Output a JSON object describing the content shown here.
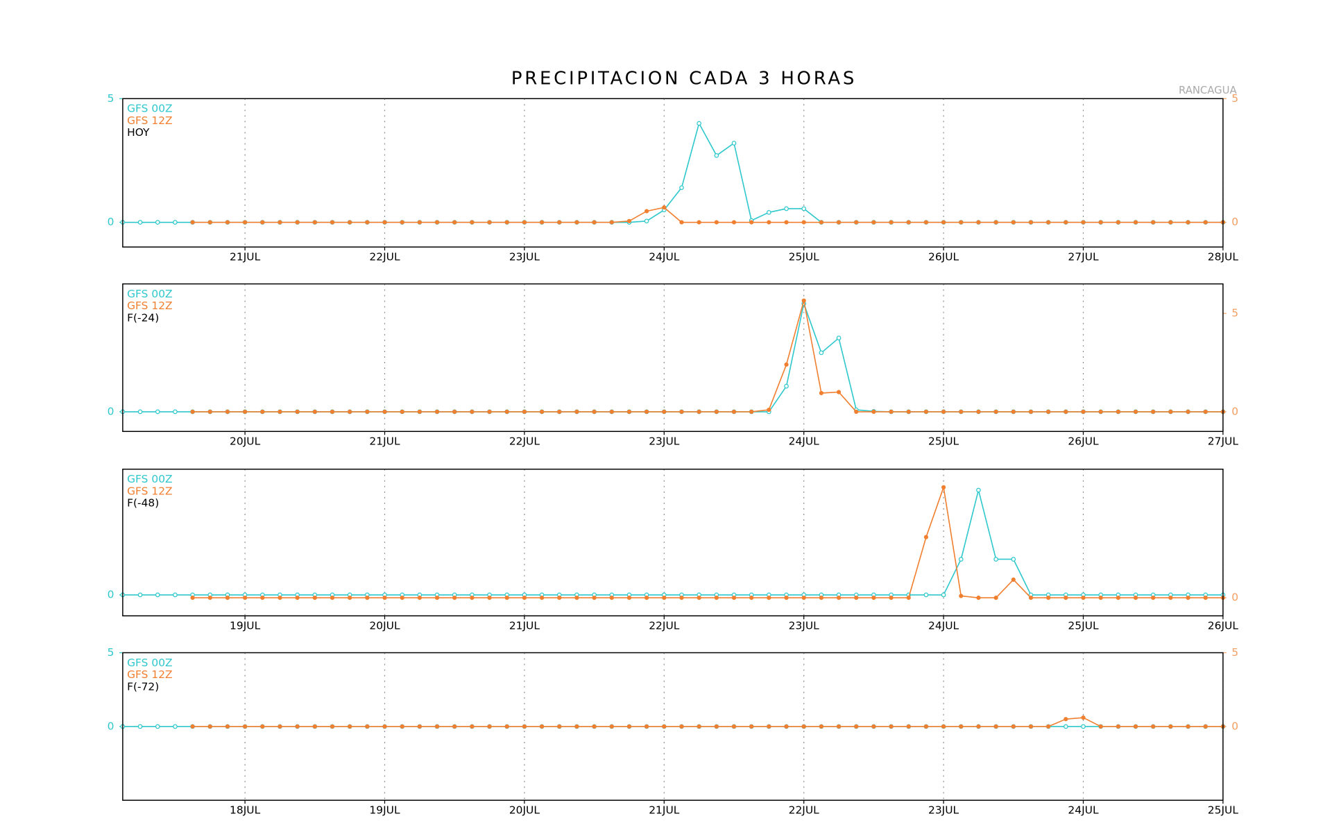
{
  "chart_data": [
    {
      "type": "line",
      "title": "PRECIPITACION CADA 3 HORAS",
      "annotation": "RANCAGUA",
      "label": "HOY",
      "xlim": [
        0,
        63
      ],
      "xticks": [
        {
          "value": 7,
          "label": "21JUL"
        },
        {
          "value": 15,
          "label": "22JUL"
        },
        {
          "value": 23,
          "label": "23JUL"
        },
        {
          "value": 31,
          "label": "24JUL"
        },
        {
          "value": 39,
          "label": "25JUL"
        },
        {
          "value": 47,
          "label": "26JUL"
        },
        {
          "value": 55,
          "label": "27JUL"
        },
        {
          "value": 63,
          "label": "28JUL"
        }
      ],
      "ylim": [
        -1,
        5
      ],
      "yticks": [
        0,
        5
      ],
      "y2lim": [
        -1,
        5
      ],
      "y2ticks": [
        0,
        5
      ],
      "grid": true,
      "series": [
        {
          "name": "GFS 00Z",
          "color": "#2ec8cc",
          "values": [
            0,
            0,
            0,
            0,
            0,
            0,
            0,
            0,
            0,
            0,
            0,
            0,
            0,
            0,
            0,
            0,
            0,
            0,
            0,
            0,
            0,
            0,
            0,
            0,
            0,
            0,
            0,
            0,
            0,
            0,
            0.05,
            0.5,
            1.4,
            4.0,
            2.7,
            3.2,
            0.07,
            0.4,
            0.55,
            0.55,
            0,
            0,
            0,
            0,
            0,
            0,
            0,
            0,
            0,
            0,
            0,
            0,
            0,
            0,
            0,
            0,
            0,
            0,
            0,
            0,
            0,
            0,
            0,
            0
          ]
        },
        {
          "name": "GFS 12Z",
          "color": "#f07f30",
          "axis": "y2",
          "values": [
            null,
            null,
            null,
            null,
            0,
            0,
            0,
            0,
            0,
            0,
            0,
            0,
            0,
            0,
            0,
            0,
            0,
            0,
            0,
            0,
            0,
            0,
            0,
            0,
            0,
            0,
            0,
            0,
            0,
            0.05,
            0.45,
            0.6,
            0,
            0,
            0,
            0,
            0,
            0,
            0,
            0,
            0,
            0,
            0,
            0,
            0,
            0,
            0,
            0,
            0,
            0,
            0,
            0,
            0,
            0,
            0,
            0,
            0,
            0,
            0,
            0,
            0,
            0,
            0,
            0
          ]
        }
      ]
    },
    {
      "type": "line",
      "label": "F(-24)",
      "xlim": [
        0,
        63
      ],
      "xticks": [
        {
          "value": 7,
          "label": "20JUL"
        },
        {
          "value": 15,
          "label": "21JUL"
        },
        {
          "value": 23,
          "label": "22JUL"
        },
        {
          "value": 31,
          "label": "23JUL"
        },
        {
          "value": 39,
          "label": "24JUL"
        },
        {
          "value": 47,
          "label": "25JUL"
        },
        {
          "value": 55,
          "label": "26JUL"
        },
        {
          "value": 63,
          "label": "27JUL"
        }
      ],
      "ylim": [
        -1,
        6.5
      ],
      "yticks": [
        0
      ],
      "y2lim": [
        -1,
        6.5
      ],
      "y2ticks": [
        0,
        5
      ],
      "grid": true,
      "series": [
        {
          "name": "GFS 00Z",
          "color": "#2ec8cc",
          "values": [
            0,
            0,
            0,
            0,
            0,
            0,
            0,
            0,
            0,
            0,
            0,
            0,
            0,
            0,
            0,
            0,
            0,
            0,
            0,
            0,
            0,
            0,
            0,
            0,
            0,
            0,
            0,
            0,
            0,
            0,
            0,
            0,
            0,
            0,
            0,
            0,
            0,
            0,
            1.3,
            5.5,
            3.0,
            3.75,
            0.1,
            0.02,
            0,
            0,
            0,
            0,
            0,
            0,
            0,
            0,
            0,
            0,
            0,
            0,
            0,
            0,
            0,
            0,
            0,
            0,
            0,
            0
          ]
        },
        {
          "name": "GFS 12Z",
          "color": "#f07f30",
          "axis": "y2",
          "values": [
            null,
            null,
            null,
            null,
            0,
            0,
            0,
            0,
            0,
            0,
            0,
            0,
            0,
            0,
            0,
            0,
            0,
            0,
            0,
            0,
            0,
            0,
            0,
            0,
            0,
            0,
            0,
            0,
            0,
            0,
            0,
            0,
            0,
            0,
            0,
            0,
            0,
            0.1,
            2.4,
            5.65,
            0.95,
            1.0,
            0,
            0,
            0,
            0,
            0,
            0,
            0,
            0,
            0,
            0,
            0,
            0,
            0,
            0,
            0,
            0,
            0,
            0,
            0,
            0,
            0,
            0
          ]
        }
      ]
    },
    {
      "type": "line",
      "label": "F(-48)",
      "xlim": [
        0,
        63
      ],
      "xticks": [
        {
          "value": 7,
          "label": "19JUL"
        },
        {
          "value": 15,
          "label": "20JUL"
        },
        {
          "value": 23,
          "label": "21JUL"
        },
        {
          "value": 31,
          "label": "22JUL"
        },
        {
          "value": 39,
          "label": "23JUL"
        },
        {
          "value": 47,
          "label": "24JUL"
        },
        {
          "value": 55,
          "label": "25JUL"
        },
        {
          "value": 63,
          "label": "26JUL"
        }
      ],
      "ylim": [
        -1,
        6
      ],
      "yticks": [
        0
      ],
      "y2lim": [
        -1,
        7.1
      ],
      "y2ticks": [
        0
      ],
      "grid": true,
      "series": [
        {
          "name": "GFS 00Z",
          "color": "#2ec8cc",
          "values": [
            0,
            0,
            0,
            0,
            0,
            0,
            0,
            0,
            0,
            0,
            0,
            0,
            0,
            0,
            0,
            0,
            0,
            0,
            0,
            0,
            0,
            0,
            0,
            0,
            0,
            0,
            0,
            0,
            0,
            0,
            0,
            0,
            0,
            0,
            0,
            0,
            0,
            0,
            0,
            0,
            0,
            0,
            0,
            0,
            0,
            0,
            0,
            0,
            1.7,
            5.0,
            1.7,
            1.7,
            0,
            0,
            0,
            0,
            0,
            0,
            0,
            0,
            0,
            0,
            0,
            0
          ]
        },
        {
          "name": "GFS 12Z",
          "color": "#f07f30",
          "axis": "y2",
          "values": [
            null,
            null,
            null,
            null,
            0,
            0,
            0,
            0,
            0,
            0,
            0,
            0,
            0,
            0,
            0,
            0,
            0,
            0,
            0,
            0,
            0,
            0,
            0,
            0,
            0,
            0,
            0,
            0,
            0,
            0,
            0,
            0,
            0,
            0,
            0,
            0,
            0,
            0,
            0,
            0,
            0,
            0,
            0,
            0,
            0,
            0,
            3.35,
            6.1,
            0.1,
            0,
            0,
            1.0,
            0,
            0,
            0,
            0,
            0,
            0,
            0,
            0,
            0,
            0,
            0,
            0
          ]
        }
      ]
    },
    {
      "type": "line",
      "label": "F(-72)",
      "xlim": [
        0,
        63
      ],
      "xticks": [
        {
          "value": 7,
          "label": "18JUL"
        },
        {
          "value": 15,
          "label": "19JUL"
        },
        {
          "value": 23,
          "label": "20JUL"
        },
        {
          "value": 31,
          "label": "21JUL"
        },
        {
          "value": 39,
          "label": "22JUL"
        },
        {
          "value": 47,
          "label": "23JUL"
        },
        {
          "value": 55,
          "label": "24JUL"
        },
        {
          "value": 63,
          "label": "25JUL"
        }
      ],
      "ylim": [
        -5,
        5
      ],
      "yticks": [
        0,
        5
      ],
      "y2lim": [
        -5,
        5
      ],
      "y2ticks": [
        0,
        5
      ],
      "grid": true,
      "series": [
        {
          "name": "GFS 00Z",
          "color": "#2ec8cc",
          "values": [
            0,
            0,
            0,
            0,
            0,
            0,
            0,
            0,
            0,
            0,
            0,
            0,
            0,
            0,
            0,
            0,
            0,
            0,
            0,
            0,
            0,
            0,
            0,
            0,
            0,
            0,
            0,
            0,
            0,
            0,
            0,
            0,
            0,
            0,
            0,
            0,
            0,
            0,
            0,
            0,
            0,
            0,
            0,
            0,
            0,
            0,
            0,
            0,
            0,
            0,
            0,
            0,
            0,
            0,
            0,
            0,
            0,
            0,
            0,
            0,
            0,
            0,
            0,
            0
          ]
        },
        {
          "name": "GFS 12Z",
          "color": "#f07f30",
          "axis": "y2",
          "values": [
            null,
            null,
            null,
            null,
            0,
            0,
            0,
            0,
            0,
            0,
            0,
            0,
            0,
            0,
            0,
            0,
            0,
            0,
            0,
            0,
            0,
            0,
            0,
            0,
            0,
            0,
            0,
            0,
            0,
            0,
            0,
            0,
            0,
            0,
            0,
            0,
            0,
            0,
            0,
            0,
            0,
            0,
            0,
            0,
            0,
            0,
            0,
            0,
            0,
            0,
            0,
            0,
            0,
            0,
            0.5,
            0.6,
            0,
            0,
            0,
            0,
            0,
            0,
            0,
            0
          ]
        }
      ]
    }
  ]
}
